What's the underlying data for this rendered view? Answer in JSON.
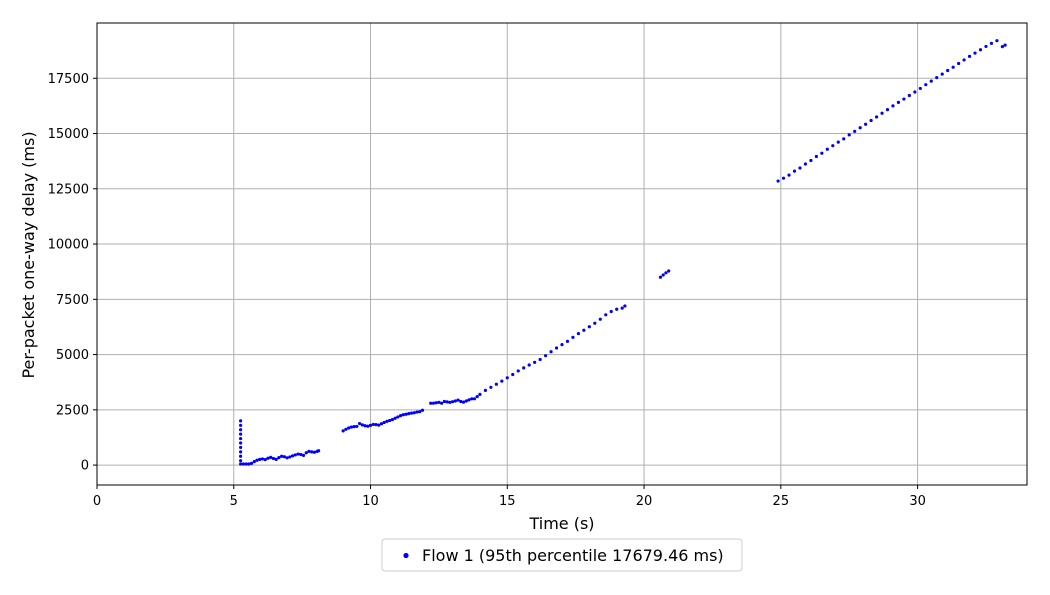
{
  "chart_data": {
    "type": "scatter",
    "title": "",
    "xlabel": "Time (s)",
    "ylabel": "Per-packet one-way delay (ms)",
    "xlim": [
      0,
      34
    ],
    "ylim": [
      -900,
      20000
    ],
    "x_ticks": [
      0,
      5,
      10,
      15,
      20,
      25,
      30
    ],
    "y_ticks": [
      0,
      2500,
      5000,
      7500,
      10000,
      12500,
      15000,
      17500
    ],
    "grid": true,
    "legend_position": "bottom-center",
    "series": [
      {
        "name": "Flow 1 (95th percentile 17679.46 ms)",
        "color": "#0000ff",
        "points": [
          [
            5.25,
            2000
          ],
          [
            5.25,
            1800
          ],
          [
            5.25,
            1600
          ],
          [
            5.25,
            1400
          ],
          [
            5.25,
            1200
          ],
          [
            5.25,
            1000
          ],
          [
            5.25,
            800
          ],
          [
            5.25,
            600
          ],
          [
            5.25,
            400
          ],
          [
            5.25,
            200
          ],
          [
            5.25,
            50
          ],
          [
            5.35,
            50
          ],
          [
            5.45,
            50
          ],
          [
            5.55,
            50
          ],
          [
            5.65,
            80
          ],
          [
            5.75,
            160
          ],
          [
            5.85,
            220
          ],
          [
            5.95,
            260
          ],
          [
            6.05,
            280
          ],
          [
            6.15,
            250
          ],
          [
            6.25,
            310
          ],
          [
            6.35,
            350
          ],
          [
            6.45,
            300
          ],
          [
            6.55,
            260
          ],
          [
            6.65,
            340
          ],
          [
            6.75,
            400
          ],
          [
            6.85,
            380
          ],
          [
            6.95,
            330
          ],
          [
            7.05,
            370
          ],
          [
            7.15,
            420
          ],
          [
            7.25,
            460
          ],
          [
            7.35,
            500
          ],
          [
            7.45,
            480
          ],
          [
            7.55,
            440
          ],
          [
            7.65,
            560
          ],
          [
            7.75,
            620
          ],
          [
            7.85,
            600
          ],
          [
            7.95,
            580
          ],
          [
            8.05,
            620
          ],
          [
            8.1,
            650
          ],
          [
            9.0,
            1550
          ],
          [
            9.1,
            1620
          ],
          [
            9.2,
            1680
          ],
          [
            9.3,
            1720
          ],
          [
            9.4,
            1740
          ],
          [
            9.5,
            1750
          ],
          [
            9.6,
            1880
          ],
          [
            9.7,
            1820
          ],
          [
            9.8,
            1780
          ],
          [
            9.9,
            1760
          ],
          [
            10.0,
            1800
          ],
          [
            10.1,
            1840
          ],
          [
            10.2,
            1830
          ],
          [
            10.3,
            1810
          ],
          [
            10.4,
            1870
          ],
          [
            10.5,
            1930
          ],
          [
            10.6,
            1980
          ],
          [
            10.7,
            2020
          ],
          [
            10.8,
            2060
          ],
          [
            10.9,
            2120
          ],
          [
            11.0,
            2180
          ],
          [
            11.1,
            2240
          ],
          [
            11.2,
            2280
          ],
          [
            11.3,
            2300
          ],
          [
            11.4,
            2330
          ],
          [
            11.5,
            2350
          ],
          [
            11.6,
            2370
          ],
          [
            11.7,
            2400
          ],
          [
            11.8,
            2420
          ],
          [
            11.9,
            2480
          ],
          [
            12.2,
            2800
          ],
          [
            12.3,
            2800
          ],
          [
            12.4,
            2820
          ],
          [
            12.5,
            2840
          ],
          [
            12.6,
            2800
          ],
          [
            12.7,
            2880
          ],
          [
            12.8,
            2860
          ],
          [
            12.9,
            2840
          ],
          [
            13.0,
            2870
          ],
          [
            13.1,
            2900
          ],
          [
            13.2,
            2940
          ],
          [
            13.3,
            2880
          ],
          [
            13.4,
            2850
          ],
          [
            13.5,
            2900
          ],
          [
            13.6,
            2950
          ],
          [
            13.7,
            3000
          ],
          [
            13.8,
            3000
          ],
          [
            13.9,
            3100
          ],
          [
            14.0,
            3200
          ],
          [
            14.2,
            3380
          ],
          [
            14.4,
            3520
          ],
          [
            14.6,
            3660
          ],
          [
            14.8,
            3800
          ],
          [
            15.0,
            3950
          ],
          [
            15.2,
            4100
          ],
          [
            15.4,
            4260
          ],
          [
            15.6,
            4400
          ],
          [
            15.8,
            4530
          ],
          [
            16.0,
            4650
          ],
          [
            16.2,
            4780
          ],
          [
            16.4,
            4950
          ],
          [
            16.6,
            5130
          ],
          [
            16.8,
            5300
          ],
          [
            17.0,
            5450
          ],
          [
            17.2,
            5600
          ],
          [
            17.4,
            5780
          ],
          [
            17.6,
            5950
          ],
          [
            17.8,
            6100
          ],
          [
            18.0,
            6260
          ],
          [
            18.2,
            6420
          ],
          [
            18.4,
            6600
          ],
          [
            18.6,
            6800
          ],
          [
            18.8,
            6950
          ],
          [
            19.0,
            7050
          ],
          [
            19.2,
            7100
          ],
          [
            19.3,
            7200
          ],
          [
            20.6,
            8500
          ],
          [
            20.7,
            8600
          ],
          [
            20.8,
            8700
          ],
          [
            20.9,
            8780
          ],
          [
            24.9,
            12850
          ],
          [
            25.1,
            12980
          ],
          [
            25.3,
            13120
          ],
          [
            25.5,
            13300
          ],
          [
            25.7,
            13440
          ],
          [
            25.9,
            13620
          ],
          [
            26.1,
            13780
          ],
          [
            26.3,
            13960
          ],
          [
            26.5,
            14110
          ],
          [
            26.7,
            14290
          ],
          [
            26.9,
            14450
          ],
          [
            27.1,
            14610
          ],
          [
            27.3,
            14760
          ],
          [
            27.5,
            14940
          ],
          [
            27.7,
            15100
          ],
          [
            27.9,
            15260
          ],
          [
            28.1,
            15420
          ],
          [
            28.3,
            15590
          ],
          [
            28.5,
            15750
          ],
          [
            28.7,
            15920
          ],
          [
            28.9,
            16080
          ],
          [
            29.1,
            16250
          ],
          [
            29.3,
            16410
          ],
          [
            29.5,
            16560
          ],
          [
            29.7,
            16720
          ],
          [
            29.9,
            16880
          ],
          [
            30.1,
            17040
          ],
          [
            30.3,
            17210
          ],
          [
            30.5,
            17370
          ],
          [
            30.7,
            17530
          ],
          [
            30.9,
            17690
          ],
          [
            31.1,
            17850
          ],
          [
            31.3,
            18000
          ],
          [
            31.5,
            18170
          ],
          [
            31.7,
            18330
          ],
          [
            31.9,
            18490
          ],
          [
            32.1,
            18640
          ],
          [
            32.3,
            18790
          ],
          [
            32.5,
            18940
          ],
          [
            32.7,
            19080
          ],
          [
            32.9,
            19200
          ],
          [
            33.1,
            18930
          ],
          [
            33.2,
            19000
          ]
        ]
      }
    ]
  }
}
